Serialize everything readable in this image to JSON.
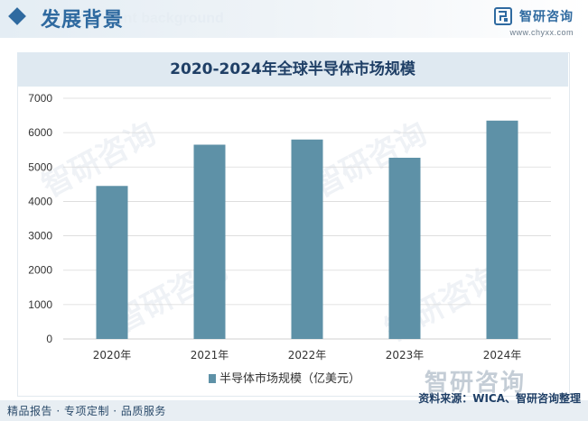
{
  "header": {
    "section_title": "发展背景",
    "section_subtitle": "nent background",
    "brand_name": "智研咨询",
    "brand_url": "www.chyxx.com"
  },
  "watermark": {
    "logo_text": "智研咨询"
  },
  "colors": {
    "bar": "#5e91a7",
    "accent": "#2f6aa0",
    "title_band": "#dfe9f1",
    "grid": "#d9d9d9"
  },
  "footer": {
    "left": "精品报告 · 专项定制 · 品质服务",
    "right": "资料来源：WICA、智研咨询整理"
  },
  "chart_data": {
    "type": "bar",
    "title": "2020-2024年全球半导体市场规模",
    "categories": [
      "2020年",
      "2021年",
      "2022年",
      "2023年",
      "2024年"
    ],
    "series": [
      {
        "name": "半导体市场规模（亿美元）",
        "values": [
          4450,
          5650,
          5800,
          5270,
          6350
        ]
      }
    ],
    "ylim": [
      0,
      7000
    ],
    "yticks": [
      0,
      1000,
      2000,
      3000,
      4000,
      5000,
      6000,
      7000
    ],
    "grid": true,
    "legend_position": "bottom-center"
  }
}
